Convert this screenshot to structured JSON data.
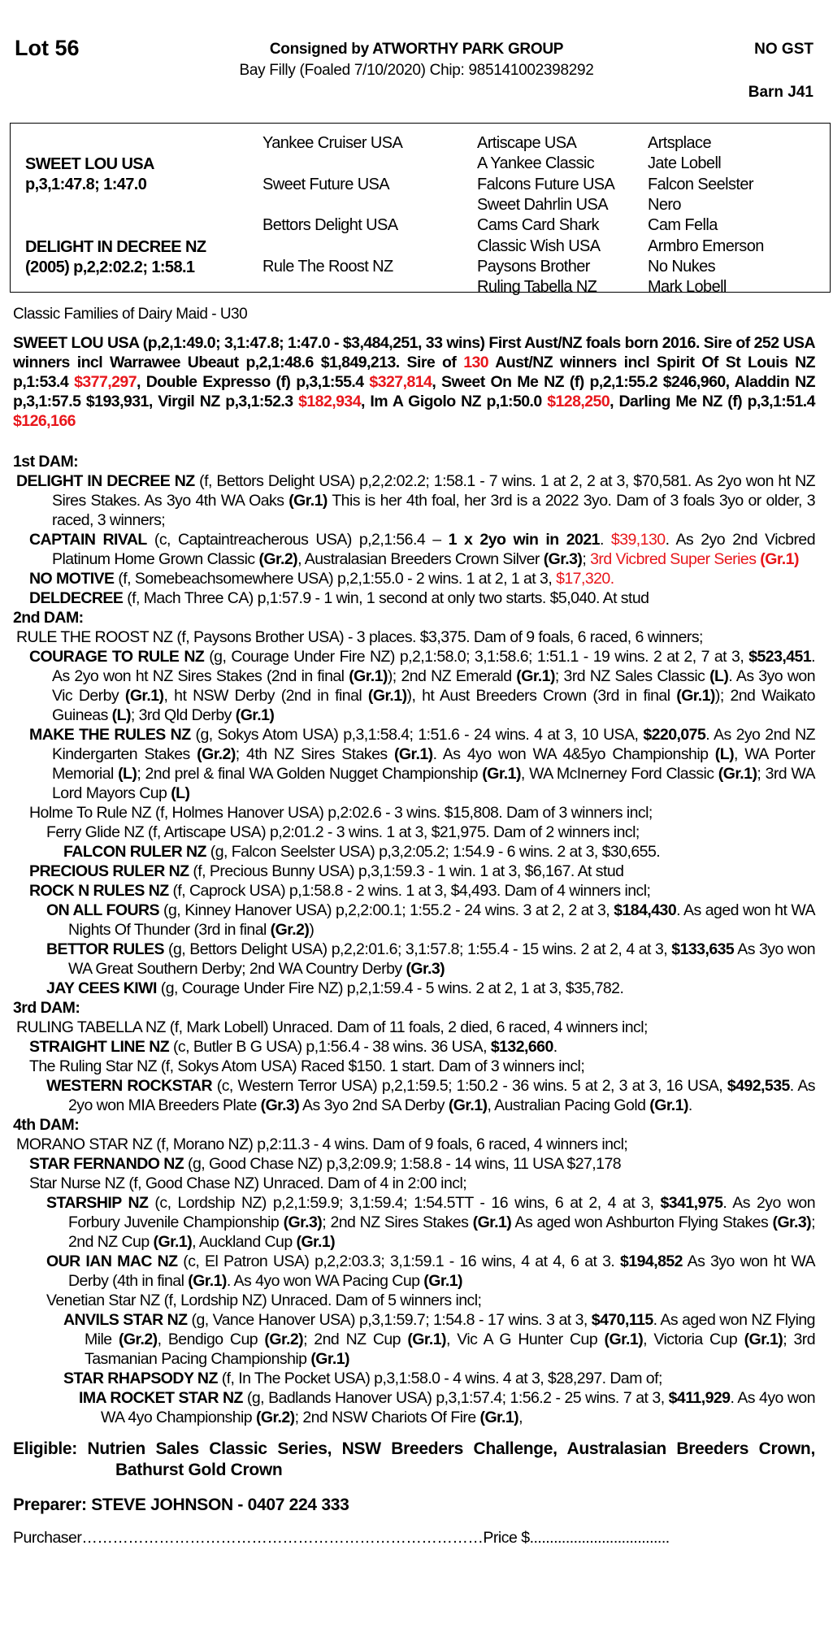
{
  "header": {
    "lot": "Lot 56",
    "consigned": "Consigned by ATWORTHY PARK GROUP",
    "gst": "NO GST",
    "description": "Bay Filly (Foaled 7/10/2020) Chip: 985141002398292",
    "barn": "Barn J41"
  },
  "pedigree": {
    "sire_name": "SWEET LOU USA",
    "sire_record": "p,3,1:47.8; 1:47.0",
    "dam_name": "DELIGHT IN DECREE NZ",
    "dam_record": "(2005) p,2,2:02.2; 1:58.1",
    "gen2": [
      "Yankee Cruiser USA",
      "Sweet Future USA",
      "Bettors Delight USA",
      "Rule The Roost NZ"
    ],
    "gen3": [
      "Artiscape USA",
      "A Yankee Classic",
      "Falcons Future USA",
      "Sweet Dahrlin USA",
      "Cams Card Shark",
      "Classic Wish USA",
      "Paysons Brother",
      "Ruling Tabella NZ"
    ],
    "gen4": [
      "Artsplace",
      "Jate Lobell",
      "Falcon Seelster",
      "Nero",
      "Cam Fella",
      "Armbro Emerson",
      "No Nukes",
      "Mark Lobell"
    ]
  },
  "family": "Classic Families of Dairy Maid - U30",
  "sire_para": [
    [
      "b",
      "SWEET LOU USA (p,2,1:49.0; 3,1:47.8; 1:47.0 - $3,484,251, 33 wins) First Aust/NZ foals born 2016. Sire of 252 USA winners incl Warrawee Ubeaut p,2,1:48.6 $1,849,213. Sire of "
    ],
    [
      "rb",
      "130"
    ],
    [
      "b",
      " Aust/NZ winners incl Spirit Of St Louis NZ p,1:53.4 "
    ],
    [
      "rb",
      "$377,297"
    ],
    [
      "b",
      ", Double Expresso (f) p,3,1:55.4 "
    ],
    [
      "rb",
      "$327,814"
    ],
    [
      "b",
      ", Sweet On Me NZ (f) p,2,1:55.2 $246,960, Aladdin NZ p,3,1:57.5 $193,931, Virgil NZ p,3,1:52.3 "
    ],
    [
      "rb",
      "$182,934"
    ],
    [
      "b",
      ", Im A Gigolo NZ p,1:50.0 "
    ],
    [
      "rb",
      "$128,250"
    ],
    [
      "b",
      ", Darling Me NZ (f) p,3,1:51.4 "
    ],
    [
      "rb",
      "$126,166"
    ]
  ],
  "dams": [
    {
      "heading": "1st DAM:",
      "entries": [
        {
          "level": 0,
          "segments": [
            [
              "b",
              "DELIGHT IN DECREE NZ"
            ],
            [
              "n",
              " (f, Bettors Delight USA) p,2,2:02.2; 1:58.1 - 7 wins. 1 at 2, 2 at 3, $70,581. As 2yo won ht NZ Sires Stakes. As 3yo 4th WA Oaks "
            ],
            [
              "b",
              "(Gr.1)"
            ],
            [
              "n",
              " This is her 4th foal, her 3rd is a 2022 3yo. Dam of 3 foals 3yo or older, 3 raced, 3 winners;"
            ]
          ]
        },
        {
          "level": 1,
          "segments": [
            [
              "b",
              "CAPTAIN RIVAL"
            ],
            [
              "n",
              " (c, Captaintreacherous USA) p,2,1:56.4 – "
            ],
            [
              "b",
              "1 x 2yo win in 2021"
            ],
            [
              "n",
              ". "
            ],
            [
              "r",
              "$39,130"
            ],
            [
              "n",
              ". As 2yo 2nd Vicbred Platinum Home Grown Classic "
            ],
            [
              "b",
              "(Gr.2)"
            ],
            [
              "n",
              ", Australasian Breeders Crown Silver "
            ],
            [
              "b",
              "(Gr.3)"
            ],
            [
              "n",
              "; "
            ],
            [
              "r",
              "3rd Vicbred Super Series "
            ],
            [
              "rb",
              "(Gr.1)"
            ]
          ]
        },
        {
          "level": 1,
          "segments": [
            [
              "b",
              "NO MOTIVE"
            ],
            [
              "n",
              " (f, Somebeachsomewhere USA) p,2,1:55.0 - 2 wins. 1 at 2, 1 at 3, "
            ],
            [
              "r",
              "$17,320."
            ]
          ]
        },
        {
          "level": 1,
          "segments": [
            [
              "b",
              "DELDECREE"
            ],
            [
              "n",
              " (f, Mach Three CA) p,1:57.9 - 1 win, 1 second at only two starts. $5,040. At stud"
            ]
          ]
        }
      ]
    },
    {
      "heading": "2nd DAM:",
      "entries": [
        {
          "level": 0,
          "segments": [
            [
              "n",
              "RULE THE ROOST NZ (f, Paysons Brother USA) - 3 places. $3,375. Dam of 9 foals, 6 raced, 6 winners;"
            ]
          ]
        },
        {
          "level": 1,
          "segments": [
            [
              "b",
              "COURAGE TO RULE NZ"
            ],
            [
              "n",
              " (g, Courage Under Fire NZ) p,2,1:58.0; 3,1:58.6; 1:51.1 - 19 wins. 2 at 2, 7 at 3, "
            ],
            [
              "b",
              "$523,451"
            ],
            [
              "n",
              ". As 2yo won ht NZ Sires Stakes (2nd in final "
            ],
            [
              "b",
              "(Gr.1)"
            ],
            [
              "n",
              "); 2nd NZ Emerald "
            ],
            [
              "b",
              "(Gr.1)"
            ],
            [
              "n",
              "; 3rd NZ Sales Classic "
            ],
            [
              "b",
              "(L)"
            ],
            [
              "n",
              ". As 3yo won Vic Derby "
            ],
            [
              "b",
              "(Gr.1)"
            ],
            [
              "n",
              ", ht NSW Derby (2nd in final "
            ],
            [
              "b",
              "(Gr.1)"
            ],
            [
              "n",
              "), ht Aust Breeders Crown (3rd in final "
            ],
            [
              "b",
              "(Gr.1)"
            ],
            [
              "n",
              "); 2nd Waikato Guineas "
            ],
            [
              "b",
              "(L)"
            ],
            [
              "n",
              "; 3rd Qld Derby "
            ],
            [
              "b",
              "(Gr.1)"
            ]
          ]
        },
        {
          "level": 1,
          "segments": [
            [
              "b",
              "MAKE THE RULES NZ"
            ],
            [
              "n",
              " (g, Sokys Atom USA) p,3,1:58.4; 1:51.6 - 24 wins. 4 at 3, 10 USA, "
            ],
            [
              "b",
              "$220,075"
            ],
            [
              "n",
              ". As 2yo 2nd NZ Kindergarten Stakes "
            ],
            [
              "b",
              "(Gr.2)"
            ],
            [
              "n",
              "; 4th NZ Sires Stakes "
            ],
            [
              "b",
              "(Gr.1)"
            ],
            [
              "n",
              ". As 4yo won WA 4&5yo Championship "
            ],
            [
              "b",
              "(L)"
            ],
            [
              "n",
              ", WA Porter Memorial "
            ],
            [
              "b",
              "(L)"
            ],
            [
              "n",
              "; 2nd prel & final WA Golden Nugget Championship "
            ],
            [
              "b",
              "(Gr.1)"
            ],
            [
              "n",
              ", WA McInerney Ford Classic "
            ],
            [
              "b",
              "(Gr.1)"
            ],
            [
              "n",
              "; 3rd WA Lord Mayors Cup "
            ],
            [
              "b",
              "(L)"
            ]
          ]
        },
        {
          "level": 1,
          "segments": [
            [
              "n",
              "Holme To Rule NZ (f, Holmes Hanover USA) p,2:02.6 - 3 wins. $15,808. Dam of 3 winners incl;"
            ]
          ]
        },
        {
          "level": 2,
          "segments": [
            [
              "n",
              "Ferry Glide NZ (f, Artiscape USA) p,2:01.2 - 3 wins. 1 at 3, $21,975. Dam of 2 winners incl;"
            ]
          ]
        },
        {
          "level": 3,
          "segments": [
            [
              "b",
              "FALCON RULER NZ"
            ],
            [
              "n",
              " (g, Falcon Seelster USA) p,3,2:05.2; 1:54.9 - 6 wins. 2 at 3, $30,655."
            ]
          ]
        },
        {
          "level": 1,
          "segments": [
            [
              "b",
              "PRECIOUS RULER NZ"
            ],
            [
              "n",
              " (f, Precious Bunny USA) p,3,1:59.3 - 1 win. 1 at 3, $6,167. At stud"
            ]
          ]
        },
        {
          "level": 1,
          "segments": [
            [
              "b",
              "ROCK N RULES NZ"
            ],
            [
              "n",
              " (f, Caprock USA) p,1:58.8 - 2 wins. 1 at 3, $4,493. Dam of 4 winners incl;"
            ]
          ]
        },
        {
          "level": 2,
          "segments": [
            [
              "b",
              "ON ALL FOURS"
            ],
            [
              "n",
              " (g, Kinney Hanover USA) p,2,2:00.1; 1:55.2 - 24 wins. 3 at 2, 2 at 3, "
            ],
            [
              "b",
              "$184,430"
            ],
            [
              "n",
              ". As aged won ht WA Nights Of Thunder (3rd in final "
            ],
            [
              "b",
              "(Gr.2)"
            ],
            [
              "n",
              ")"
            ]
          ]
        },
        {
          "level": 2,
          "segments": [
            [
              "b",
              "BETTOR RULES"
            ],
            [
              "n",
              " (g, Bettors Delight USA) p,2,2:01.6; 3,1:57.8; 1:55.4 - 15 wins. 2 at 2, 4 at 3, "
            ],
            [
              "b",
              "$133,635"
            ],
            [
              "n",
              " As 3yo won WA Great Southern Derby; 2nd WA Country Derby "
            ],
            [
              "b",
              "(Gr.3)"
            ]
          ]
        },
        {
          "level": 2,
          "segments": [
            [
              "b",
              "JAY CEES KIWI"
            ],
            [
              "n",
              " (g, Courage Under Fire NZ) p,2,1:59.4 - 5 wins. 2 at 2, 1 at 3, $35,782."
            ]
          ]
        }
      ]
    },
    {
      "heading": "3rd DAM:",
      "entries": [
        {
          "level": 0,
          "segments": [
            [
              "n",
              "RULING TABELLA NZ (f, Mark Lobell) Unraced. Dam of 11 foals, 2 died, 6 raced, 4 winners incl;"
            ]
          ]
        },
        {
          "level": 1,
          "segments": [
            [
              "b",
              "STRAIGHT LINE NZ"
            ],
            [
              "n",
              " (c, Butler B G USA) p,1:56.4 - 38 wins. 36 USA, "
            ],
            [
              "b",
              "$132,660"
            ],
            [
              "n",
              "."
            ]
          ]
        },
        {
          "level": 1,
          "segments": [
            [
              "n",
              "The Ruling Star NZ (f, Sokys Atom USA) Raced $150. 1 start. Dam of 3 winners incl;"
            ]
          ]
        },
        {
          "level": 2,
          "segments": [
            [
              "b",
              "WESTERN ROCKSTAR"
            ],
            [
              "n",
              " (c, Western Terror USA) p,2,1:59.5; 1:50.2 - 36 wins. 5 at 2, 3 at 3, 16 USA, "
            ],
            [
              "b",
              "$492,535"
            ],
            [
              "n",
              ". As 2yo won MIA Breeders Plate "
            ],
            [
              "b",
              "(Gr.3)"
            ],
            [
              "n",
              " As 3yo 2nd SA Derby "
            ],
            [
              "b",
              "(Gr.1)"
            ],
            [
              "n",
              ", Australian Pacing Gold "
            ],
            [
              "b",
              "(Gr.1)"
            ],
            [
              "n",
              "."
            ]
          ]
        }
      ]
    },
    {
      "heading": "4th DAM:",
      "entries": [
        {
          "level": 0,
          "segments": [
            [
              "n",
              "MORANO STAR NZ (f, Morano NZ) p,2:11.3 - 4 wins. Dam of 9 foals, 6 raced, 4 winners incl;"
            ]
          ]
        },
        {
          "level": 1,
          "segments": [
            [
              "b",
              "STAR FERNANDO NZ"
            ],
            [
              "n",
              " (g, Good Chase NZ) p,3,2:09.9; 1:58.8 - 14 wins, 11 USA $27,178"
            ]
          ]
        },
        {
          "level": 1,
          "segments": [
            [
              "n",
              "Star Nurse NZ (f, Good Chase NZ) Unraced. Dam of 4 in 2:00 incl;"
            ]
          ]
        },
        {
          "level": 2,
          "segments": [
            [
              "b",
              "STARSHIP NZ"
            ],
            [
              "n",
              " (c, Lordship NZ) p,2,1:59.9; 3,1:59.4; 1:54.5TT - 16 wins, 6 at 2, 4 at 3, "
            ],
            [
              "b",
              "$341,975"
            ],
            [
              "n",
              ". As 2yo won Forbury Juvenile Championship "
            ],
            [
              "b",
              "(Gr.3)"
            ],
            [
              "n",
              "; 2nd NZ Sires Stakes "
            ],
            [
              "b",
              "(Gr.1)"
            ],
            [
              "n",
              " As aged won Ashburton Flying Stakes "
            ],
            [
              "b",
              "(Gr.3)"
            ],
            [
              "n",
              "; 2nd NZ Cup "
            ],
            [
              "b",
              "(Gr.1)"
            ],
            [
              "n",
              ", Auckland Cup "
            ],
            [
              "b",
              "(Gr.1)"
            ]
          ]
        },
        {
          "level": 2,
          "segments": [
            [
              "b",
              "OUR IAN MAC NZ"
            ],
            [
              "n",
              " (c, El Patron USA) p,2,2:03.3; 3,1:59.1 - 16 wins, 4 at 4, 6 at 3. "
            ],
            [
              "b",
              "$194,852"
            ],
            [
              "n",
              " As 3yo won ht WA Derby (4th in final "
            ],
            [
              "b",
              "(Gr.1)"
            ],
            [
              "n",
              ". As 4yo won WA Pacing Cup "
            ],
            [
              "b",
              "(Gr.1)"
            ]
          ]
        },
        {
          "level": 2,
          "segments": [
            [
              "n",
              "Venetian Star NZ (f, Lordship NZ) Unraced. Dam of 5 winners incl;"
            ]
          ]
        },
        {
          "level": 3,
          "segments": [
            [
              "b",
              "ANVILS STAR NZ"
            ],
            [
              "n",
              " (g, Vance Hanover USA) p,3,1:59.7; 1:54.8 - 17 wins. 3 at 3, "
            ],
            [
              "b",
              "$470,115"
            ],
            [
              "n",
              ". As aged won NZ Flying Mile "
            ],
            [
              "b",
              "(Gr.2)"
            ],
            [
              "n",
              ", Bendigo Cup "
            ],
            [
              "b",
              "(Gr.2)"
            ],
            [
              "n",
              "; 2nd NZ Cup "
            ],
            [
              "b",
              "(Gr.1)"
            ],
            [
              "n",
              ", Vic A G Hunter Cup "
            ],
            [
              "b",
              "(Gr.1)"
            ],
            [
              "n",
              ", Victoria Cup "
            ],
            [
              "b",
              "(Gr.1)"
            ],
            [
              "n",
              "; 3rd Tasmanian Pacing Championship "
            ],
            [
              "b",
              "(Gr.1)"
            ]
          ]
        },
        {
          "level": 3,
          "segments": [
            [
              "b",
              "STAR RHAPSODY NZ"
            ],
            [
              "n",
              " (f, In The Pocket USA) p,3,1:58.0 - 4 wins. 4 at 3, $28,297. Dam of;"
            ]
          ]
        },
        {
          "level": 4,
          "segments": [
            [
              "b",
              "IMA ROCKET STAR NZ"
            ],
            [
              "n",
              " (g, Badlands Hanover USA) p,3,1:57.4; 1:56.2 - 25 wins. 7 at 3, "
            ],
            [
              "b",
              "$411,929"
            ],
            [
              "n",
              ". As 4yo won WA 4yo Championship "
            ],
            [
              "b",
              "(Gr.2)"
            ],
            [
              "n",
              "; 2nd NSW Chariots Of Fire "
            ],
            [
              "b",
              "(Gr.1)"
            ],
            [
              "n",
              ","
            ]
          ]
        }
      ]
    }
  ],
  "eligible": "Eligible: Nutrien Sales Classic Series, NSW Breeders Challenge, Australasian Breeders Crown, Bathurst Gold Crown",
  "preparer": "Preparer: STEVE JOHNSON - 0407 224 333",
  "purchaser_line": "Purchaser……………………………………………………………………Price $...................................",
  "colors": {
    "highlight": "#e8161b",
    "text": "#000000"
  }
}
